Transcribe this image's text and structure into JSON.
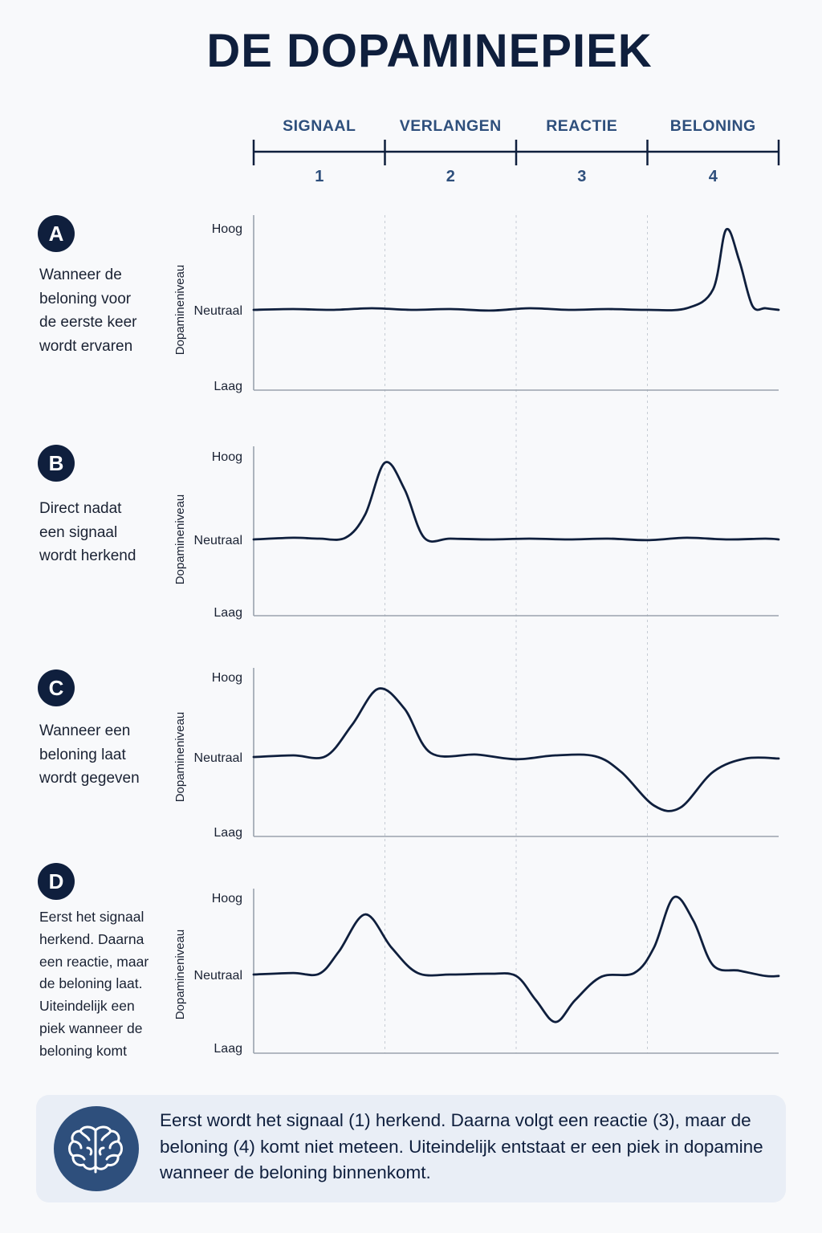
{
  "title": "DE DOPAMINEPIEK",
  "phases": [
    {
      "label": "SIGNAAL",
      "number": "1"
    },
    {
      "label": "VERLANGEN",
      "number": "2"
    },
    {
      "label": "REACTIE",
      "number": "3"
    },
    {
      "label": "BELONING",
      "number": "4"
    }
  ],
  "colors": {
    "ink": "#0f1f3d",
    "phase_text": "#2e4f7c",
    "axis": "#9aa3ae",
    "footer_bg": "#e9eef6",
    "icon_bg": "#2e4f7c"
  },
  "chart_data": [
    {
      "type": "line",
      "id": "A",
      "badge": "A",
      "description": "Wanneer de\nbeloning voor\nde eerste keer\nwordt ervaren",
      "ylabel": "Dopamineniveau",
      "y_ticks": [
        "Hoog",
        "Neutraal",
        "Laag"
      ],
      "x_phases": [
        "1",
        "2",
        "3",
        "4"
      ],
      "y_range": [
        -1,
        1
      ],
      "x": [
        0,
        0.3,
        0.6,
        0.9,
        1.2,
        1.5,
        1.8,
        2.1,
        2.4,
        2.7,
        3.0,
        3.3,
        3.5,
        3.6,
        3.7,
        3.8,
        3.9,
        4.0
      ],
      "y": [
        0,
        0.01,
        0,
        0.02,
        0,
        0.01,
        -0.01,
        0.02,
        0,
        0.01,
        0,
        0.02,
        0.25,
        0.98,
        0.6,
        0.05,
        0.02,
        0
      ]
    },
    {
      "type": "line",
      "id": "B",
      "badge": "B",
      "description": "Direct nadat\neen signaal\nwordt herkend",
      "ylabel": "Dopamineniveau",
      "y_ticks": [
        "Hoog",
        "Neutraal",
        "Laag"
      ],
      "x_phases": [
        "1",
        "2",
        "3",
        "4"
      ],
      "y_range": [
        -1,
        1
      ],
      "x": [
        0,
        0.3,
        0.5,
        0.7,
        0.85,
        1.0,
        1.15,
        1.3,
        1.5,
        1.8,
        2.1,
        2.4,
        2.7,
        3.0,
        3.3,
        3.6,
        3.9,
        4.0
      ],
      "y": [
        0,
        0.02,
        0.01,
        0.02,
        0.3,
        0.92,
        0.6,
        0.02,
        0.01,
        0,
        0.01,
        0,
        0.01,
        -0.01,
        0.02,
        0,
        0.01,
        0
      ]
    },
    {
      "type": "line",
      "id": "C",
      "badge": "C",
      "description": "Wanneer een\nbeloning laat\nwordt gegeven",
      "ylabel": "Dopamineniveau",
      "y_ticks": [
        "Hoog",
        "Neutraal",
        "Laag"
      ],
      "x_phases": [
        "1",
        "2",
        "3",
        "4"
      ],
      "y_range": [
        -1,
        1
      ],
      "x": [
        0,
        0.3,
        0.55,
        0.75,
        0.95,
        1.15,
        1.35,
        1.7,
        2.0,
        2.3,
        2.6,
        2.8,
        3.05,
        3.25,
        3.5,
        3.75,
        4.0
      ],
      "y": [
        0,
        0.02,
        0.01,
        0.4,
        0.85,
        0.6,
        0.05,
        0.03,
        -0.03,
        0.02,
        0.01,
        -0.2,
        -0.65,
        -0.68,
        -0.2,
        -0.02,
        -0.02
      ]
    },
    {
      "type": "line",
      "id": "D",
      "badge": "D",
      "description": "Eerst het signaal\nherkend. Daarna\neen reactie, maar\nde beloning laat.\nUiteindelijk een\npiek wanneer de\nbeloning komt",
      "ylabel": "Dopamineniveau",
      "y_ticks": [
        "Hoog",
        "Neutraal",
        "Laag"
      ],
      "x_phases": [
        "1",
        "2",
        "3",
        "4"
      ],
      "y_range": [
        -1,
        1
      ],
      "x": [
        0,
        0.3,
        0.5,
        0.65,
        0.85,
        1.05,
        1.25,
        1.5,
        1.8,
        2.0,
        2.15,
        2.3,
        2.45,
        2.65,
        2.9,
        3.05,
        3.2,
        3.35,
        3.5,
        3.7,
        3.9,
        4.0
      ],
      "y": [
        0,
        0.02,
        0.01,
        0.3,
        0.78,
        0.35,
        0.02,
        0,
        0.01,
        -0.02,
        -0.35,
        -0.65,
        -0.35,
        -0.03,
        0.02,
        0.35,
        1.0,
        0.7,
        0.12,
        0.05,
        -0.02,
        -0.02
      ]
    }
  ],
  "footer": {
    "icon": "brain-icon",
    "text": "Eerst wordt het signaal (1) herkend. Daarna volgt een reactie (3), maar de beloning (4) komt niet meteen. Uiteindelijk entstaat er een piek in dopamine wanneer de beloning binnenkomt."
  }
}
